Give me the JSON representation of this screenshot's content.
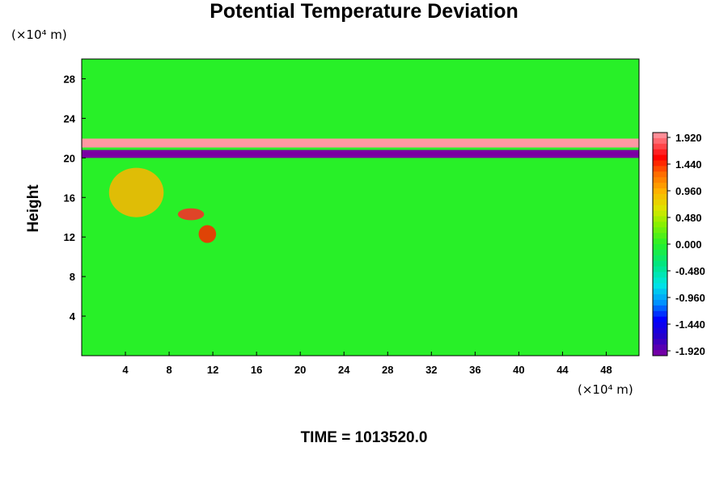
{
  "chart_data": {
    "type": "heatmap",
    "title": "Potential Temperature Deviation",
    "ylabel": "Height",
    "y_unit": "(×10⁴ m)",
    "x_unit": "(×10⁴ m)",
    "xlim": [
      0,
      51
    ],
    "ylim": [
      0,
      30
    ],
    "x_ticks": [
      4,
      8,
      12,
      16,
      20,
      24,
      28,
      32,
      36,
      40,
      44,
      48
    ],
    "y_ticks": [
      4,
      8,
      12,
      16,
      20,
      24,
      28
    ],
    "colorbar": {
      "range": [
        -1.92,
        1.92
      ],
      "labels": [
        "1.920",
        "1.440",
        "0.960",
        "0.480",
        "0.000",
        "-0.480",
        "-0.960",
        "-1.440",
        "-1.920"
      ]
    },
    "features": [
      {
        "kind": "band",
        "x": [
          0,
          51
        ],
        "y_center": 21.5,
        "thickness": 0.9,
        "value": 1.9
      },
      {
        "kind": "band",
        "x": [
          0,
          51
        ],
        "y_center": 20.4,
        "thickness": 0.8,
        "value": -1.9
      },
      {
        "kind": "blob",
        "x": 10,
        "y": 14.3,
        "rx": 1.2,
        "ry": 0.6,
        "value": 1.6
      },
      {
        "kind": "blob",
        "x": 11.5,
        "y": 12.3,
        "rx": 0.8,
        "ry": 0.9,
        "value": 1.4
      },
      {
        "kind": "blob",
        "x": 5,
        "y": 16.5,
        "rx": 2.5,
        "ry": 2.5,
        "value": 0.9
      }
    ]
  },
  "footer": {
    "time_label": "TIME =",
    "time_value": "1013520.0"
  }
}
